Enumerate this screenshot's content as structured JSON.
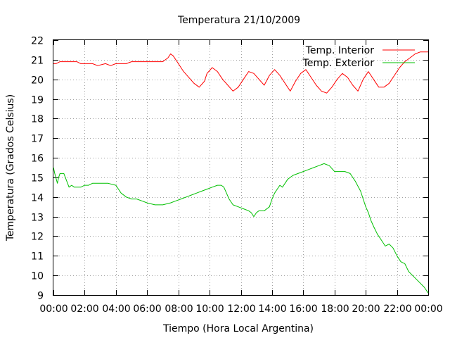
{
  "chart_data": {
    "type": "line",
    "title": "Temperatura 21/10/2009",
    "xlabel": "Tiempo (Hora Local Argentina)",
    "ylabel": "Temperatura (Grados Celsius)",
    "xlim": [
      "00:00",
      "24:00"
    ],
    "ylim": [
      9,
      22
    ],
    "x_tick_labels": [
      "00:00",
      "02:00",
      "04:00",
      "06:00",
      "08:00",
      "10:00",
      "12:00",
      "14:00",
      "16:00",
      "18:00",
      "20:00",
      "22:00",
      "00:00"
    ],
    "y_tick_labels": [
      "9",
      "10",
      "11",
      "12",
      "13",
      "14",
      "15",
      "16",
      "17",
      "18",
      "19",
      "20",
      "21",
      "22"
    ],
    "grid": true,
    "legend_position": "top-right",
    "series": [
      {
        "name": "Temp. Interior",
        "color": "#ff0000",
        "x": [
          "00:00",
          "00:10",
          "00:25",
          "01:00",
          "01:30",
          "01:45",
          "02:30",
          "02:50",
          "03:20",
          "03:40",
          "04:00",
          "04:20",
          "04:40",
          "05:00",
          "06:00",
          "07:00",
          "07:20",
          "07:30",
          "07:40",
          "08:00",
          "08:20",
          "08:40",
          "09:00",
          "09:20",
          "09:40",
          "09:50",
          "10:10",
          "10:30",
          "10:50",
          "11:10",
          "11:30",
          "11:50",
          "12:10",
          "12:30",
          "12:50",
          "13:10",
          "13:30",
          "13:50",
          "14:10",
          "14:30",
          "14:50",
          "15:10",
          "15:30",
          "15:50",
          "16:10",
          "16:30",
          "16:50",
          "17:10",
          "17:30",
          "17:50",
          "18:10",
          "18:30",
          "18:50",
          "19:10",
          "19:30",
          "19:50",
          "20:10",
          "20:30",
          "20:50",
          "21:10",
          "21:30",
          "21:50",
          "22:10",
          "22:30",
          "22:50",
          "23:10",
          "23:30",
          "24:00"
        ],
        "values": [
          20.8,
          20.8,
          20.9,
          20.9,
          20.9,
          20.8,
          20.8,
          20.7,
          20.8,
          20.7,
          20.8,
          20.8,
          20.8,
          20.9,
          20.9,
          20.9,
          21.1,
          21.3,
          21.2,
          20.8,
          20.4,
          20.1,
          19.8,
          19.6,
          19.9,
          20.3,
          20.6,
          20.4,
          20.0,
          19.7,
          19.4,
          19.6,
          20.0,
          20.4,
          20.3,
          20.0,
          19.7,
          20.2,
          20.5,
          20.2,
          19.8,
          19.4,
          19.9,
          20.3,
          20.5,
          20.1,
          19.7,
          19.4,
          19.3,
          19.6,
          20.0,
          20.3,
          20.1,
          19.7,
          19.4,
          20.0,
          20.4,
          20.0,
          19.6,
          19.6,
          19.8,
          20.2,
          20.6,
          20.9,
          21.1,
          21.3,
          21.4,
          21.4
        ]
      },
      {
        "name": "Temp. Exterior",
        "color": "#00c000",
        "x": [
          "00:00",
          "00:05",
          "00:15",
          "00:20",
          "00:25",
          "00:30",
          "00:40",
          "01:00",
          "01:10",
          "01:20",
          "01:30",
          "01:45",
          "02:00",
          "02:15",
          "02:30",
          "02:45",
          "03:00",
          "03:30",
          "04:00",
          "04:10",
          "04:20",
          "04:40",
          "05:00",
          "05:20",
          "05:40",
          "06:00",
          "06:30",
          "07:00",
          "07:30",
          "07:50",
          "08:10",
          "08:30",
          "08:50",
          "09:10",
          "09:30",
          "09:50",
          "10:10",
          "10:30",
          "10:45",
          "10:55",
          "11:05",
          "11:15",
          "11:30",
          "11:50",
          "12:10",
          "12:30",
          "12:40",
          "12:50",
          "13:00",
          "13:10",
          "13:30",
          "13:50",
          "14:00",
          "14:10",
          "14:20",
          "14:30",
          "14:40",
          "14:50",
          "15:00",
          "15:10",
          "15:20",
          "15:40",
          "16:00",
          "16:20",
          "16:40",
          "17:00",
          "17:20",
          "17:40",
          "18:00",
          "18:20",
          "18:40",
          "19:00",
          "19:20",
          "19:40",
          "19:50",
          "20:00",
          "20:10",
          "20:20",
          "20:30",
          "20:45",
          "21:00",
          "21:15",
          "21:30",
          "21:45",
          "22:00",
          "22:15",
          "22:30",
          "22:45",
          "23:00",
          "23:15",
          "23:30",
          "23:45",
          "24:00"
        ],
        "values": [
          15.5,
          15.2,
          14.7,
          15.0,
          15.2,
          15.2,
          15.2,
          14.5,
          14.6,
          14.5,
          14.5,
          14.5,
          14.6,
          14.6,
          14.7,
          14.7,
          14.7,
          14.7,
          14.6,
          14.4,
          14.2,
          14.0,
          13.9,
          13.9,
          13.8,
          13.7,
          13.6,
          13.6,
          13.7,
          13.8,
          13.9,
          14.0,
          14.1,
          14.2,
          14.3,
          14.4,
          14.5,
          14.6,
          14.6,
          14.5,
          14.2,
          13.9,
          13.6,
          13.5,
          13.4,
          13.3,
          13.2,
          13.0,
          13.2,
          13.3,
          13.3,
          13.5,
          13.9,
          14.2,
          14.4,
          14.6,
          14.5,
          14.7,
          14.9,
          15.0,
          15.1,
          15.2,
          15.3,
          15.4,
          15.5,
          15.6,
          15.7,
          15.6,
          15.3,
          15.3,
          15.3,
          15.2,
          14.8,
          14.3,
          13.9,
          13.5,
          13.2,
          12.8,
          12.5,
          12.1,
          11.8,
          11.5,
          11.6,
          11.4,
          11.0,
          10.7,
          10.6,
          10.2,
          10.0,
          9.8,
          9.6,
          9.4,
          9.1
        ]
      }
    ]
  }
}
